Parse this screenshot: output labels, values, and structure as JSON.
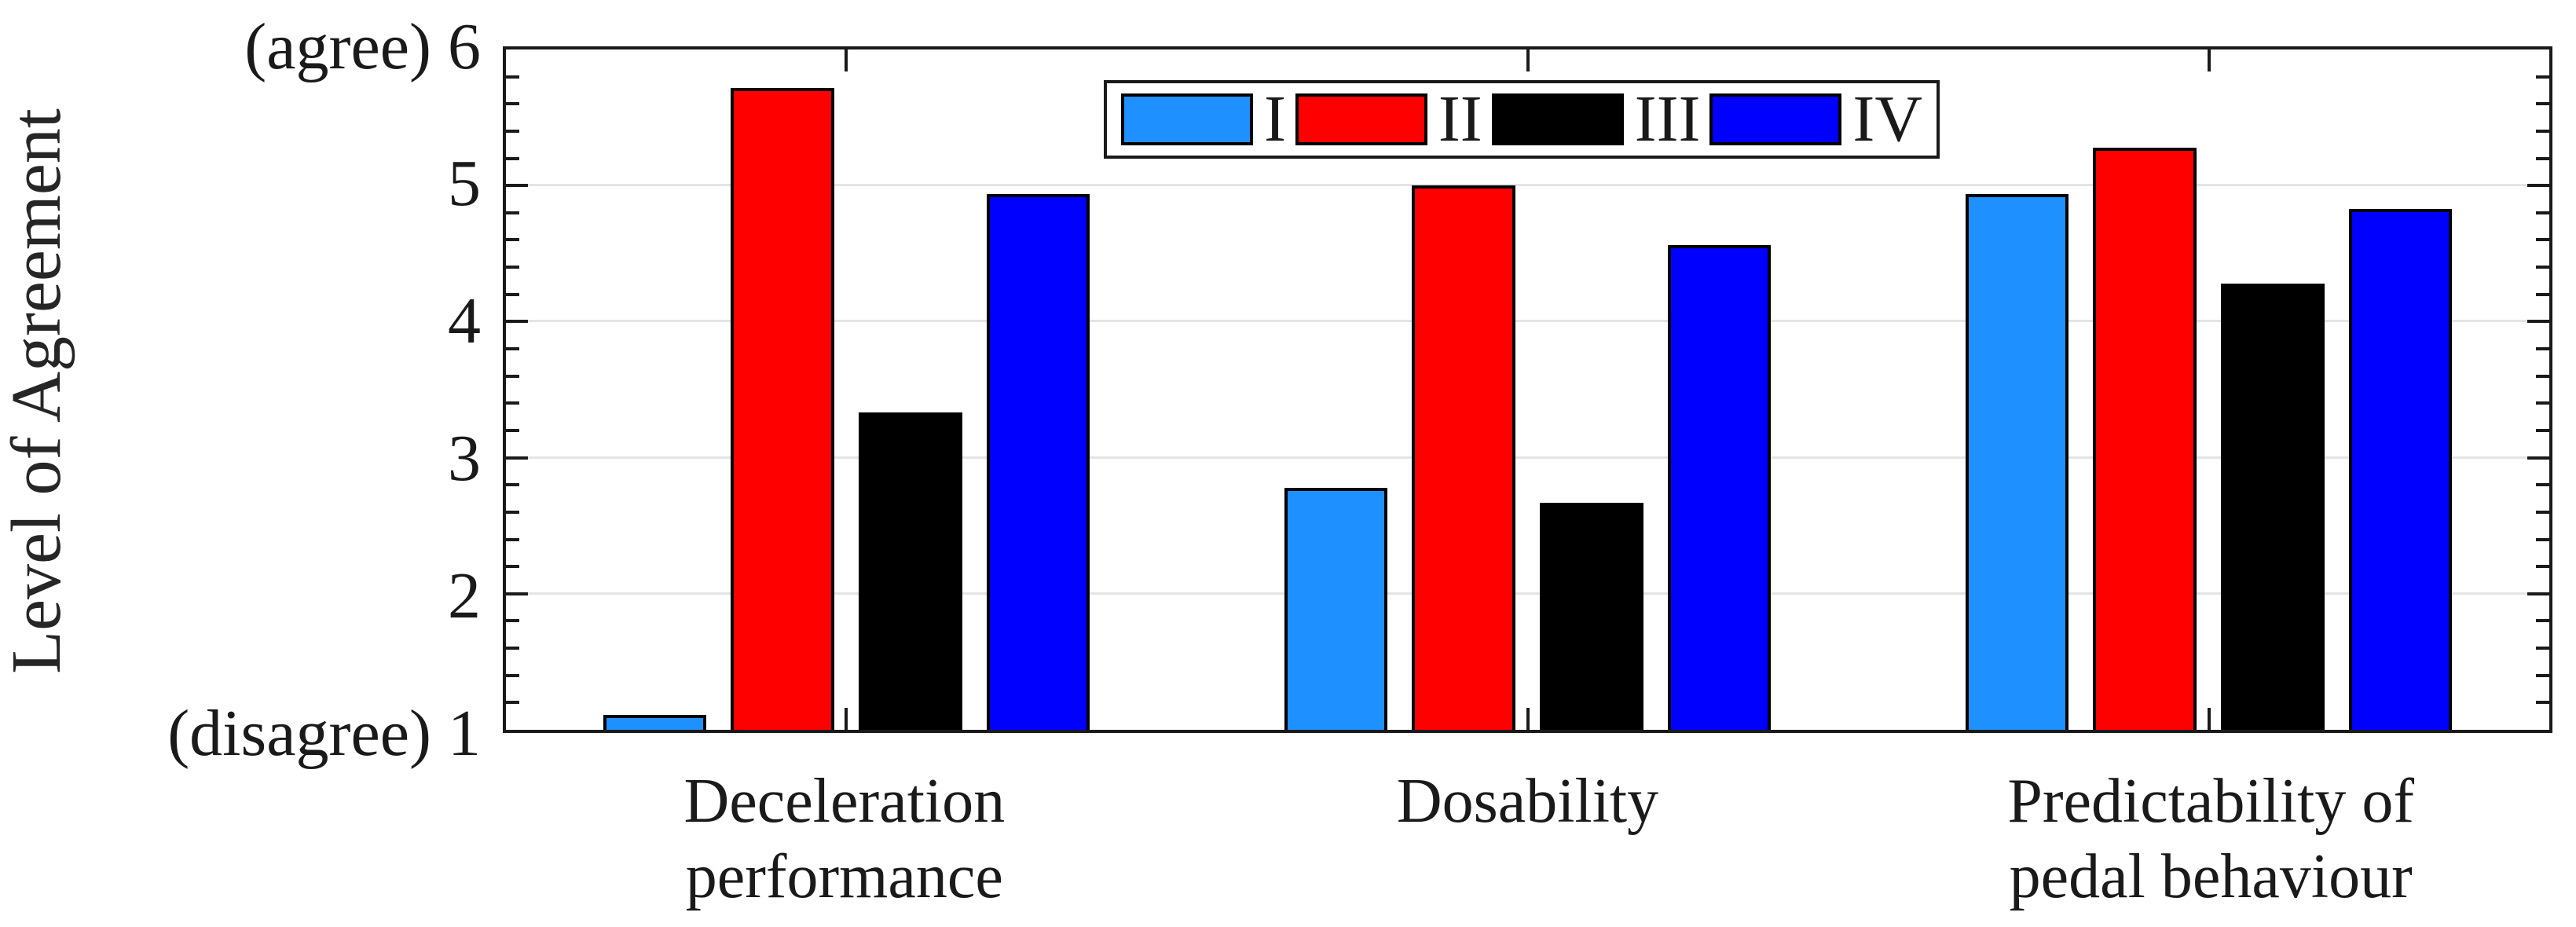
{
  "chart_data": {
    "type": "bar",
    "title": "",
    "ylabel": "Level of Agreement",
    "xlabel": "",
    "ylim": [
      1,
      6
    ],
    "grid": "horizontal-major-on",
    "legend_position": "top-center-inside",
    "yticks": [
      {
        "value": 1,
        "label": "(disagree) 1"
      },
      {
        "value": 2,
        "label": "2"
      },
      {
        "value": 3,
        "label": "3"
      },
      {
        "value": 4,
        "label": "4"
      },
      {
        "value": 5,
        "label": "5"
      },
      {
        "value": 6,
        "label": "(agree) 6"
      }
    ],
    "minor_tick_step": 0.2,
    "categories": [
      {
        "id": "deceleration-performance",
        "label_lines": [
          "Deceleration",
          "performance"
        ]
      },
      {
        "id": "dosability",
        "label_lines": [
          "Dosability"
        ]
      },
      {
        "id": "predictability-of-pedal-behaviour",
        "label_lines": [
          "Predictability of",
          "pedal behaviour"
        ]
      }
    ],
    "series": [
      {
        "name": "I",
        "color": "#1E90FF",
        "values": [
          1.11,
          2.78,
          4.94
        ]
      },
      {
        "name": "II",
        "color": "#FF0000",
        "values": [
          5.72,
          5.0,
          5.28
        ]
      },
      {
        "name": "III",
        "color": "#000000",
        "values": [
          3.33,
          2.67,
          4.28
        ]
      },
      {
        "name": "IV",
        "color": "#0000FF",
        "values": [
          4.94,
          4.56,
          4.83
        ]
      }
    ],
    "colors": {
      "axis": "#1a1a1a",
      "grid": "#e4e4e4",
      "bar_edge": "#000000",
      "background": "#ffffff"
    }
  }
}
